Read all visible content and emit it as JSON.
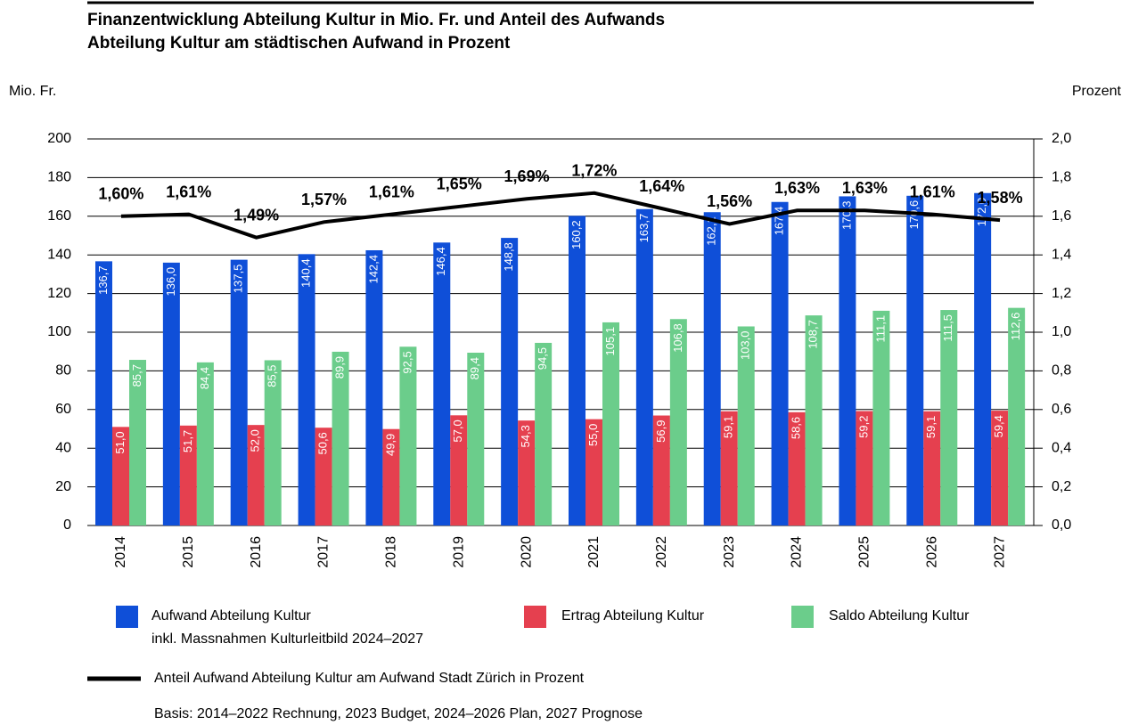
{
  "chart_data": {
    "type": "bar",
    "title_lines": [
      "Finanzentwicklung Abteilung Kultur in Mio. Fr. und Anteil des Aufwands",
      "Abteilung Kultur am städtischen Aufwand in Prozent"
    ],
    "y_label": "Mio. Fr.",
    "y2_label": "Prozent",
    "categories": [
      "2014",
      "2015",
      "2016",
      "2017",
      "2018",
      "2019",
      "2020",
      "2021",
      "2022",
      "2023",
      "2024",
      "2025",
      "2026",
      "2027"
    ],
    "ylim": [
      0,
      200
    ],
    "yticks": [
      0,
      20,
      40,
      60,
      80,
      100,
      120,
      140,
      160,
      180,
      200
    ],
    "y2lim": [
      0,
      2
    ],
    "y2ticks": [
      {
        "value": 0,
        "label": "0,0"
      },
      {
        "value": 0.2,
        "label": "0,2"
      },
      {
        "value": 0.4,
        "label": "0,4"
      },
      {
        "value": 0.6,
        "label": "0,6"
      },
      {
        "value": 0.8,
        "label": "0,8"
      },
      {
        "value": 1,
        "label": "1,0"
      },
      {
        "value": 1.2,
        "label": "1,2"
      },
      {
        "value": 1.4,
        "label": "1,4"
      },
      {
        "value": 1.6,
        "label": "1,6"
      },
      {
        "value": 1.8,
        "label": "1,8"
      },
      {
        "value": 2,
        "label": "2,0"
      }
    ],
    "grid": true,
    "series": [
      {
        "name": "Aufwand Abteilung Kultur",
        "note": "inkl. Massnahmen Kulturleitbild 2024–2027",
        "type": "bar",
        "color": "#0f4fd8",
        "values": [
          136.7,
          136.0,
          137.5,
          140.4,
          142.4,
          146.4,
          148.8,
          160.2,
          163.7,
          162.1,
          167.4,
          170.3,
          170.6,
          172.0
        ],
        "value_labels": [
          "136,7",
          "136,0",
          "137,5",
          "140,4",
          "142,4",
          "146,4",
          "148,8",
          "160,2",
          "163,7",
          "162,1",
          "167,4",
          "170,3",
          "170,6",
          "172,0"
        ]
      },
      {
        "name": "Ertrag Abteilung Kultur",
        "type": "bar",
        "color": "#e5404f",
        "values": [
          51.0,
          51.7,
          52.0,
          50.6,
          49.9,
          57.0,
          54.3,
          55.0,
          56.9,
          59.1,
          58.6,
          59.2,
          59.1,
          59.4
        ],
        "value_labels": [
          "51,0",
          "51,7",
          "52,0",
          "50,6",
          "49,9",
          "57,0",
          "54,3",
          "55,0",
          "56,9",
          "59,1",
          "58,6",
          "59,2",
          "59,1",
          "59,4"
        ]
      },
      {
        "name": "Saldo Abteilung Kultur",
        "type": "bar",
        "color": "#6bcd8b",
        "values": [
          85.7,
          84.4,
          85.5,
          89.9,
          92.5,
          89.4,
          94.5,
          105.1,
          106.8,
          103.0,
          108.7,
          111.1,
          111.5,
          112.6
        ],
        "value_labels": [
          "85,7",
          "84,4",
          "85,5",
          "89,9",
          "92,5",
          "89,4",
          "94,5",
          "105,1",
          "106,8",
          "103,0",
          "108,7",
          "111,1",
          "111,5",
          "112,6"
        ]
      },
      {
        "name": "Anteil Aufwand Abteilung Kultur am Aufwand Stadt Zürich in Prozent",
        "type": "line",
        "axis": "y2",
        "color": "#000000",
        "values": [
          1.6,
          1.61,
          1.49,
          1.57,
          1.61,
          1.65,
          1.69,
          1.72,
          1.64,
          1.56,
          1.63,
          1.63,
          1.61,
          1.58
        ],
        "value_labels": [
          "1,60%",
          "1,61%",
          "1,49%",
          "1,57%",
          "1,61%",
          "1,65%",
          "1,69%",
          "1,72%",
          "1,64%",
          "1,56%",
          "1,63%",
          "1,63%",
          "1,61%",
          "1,58%"
        ]
      }
    ],
    "source": "Basis: 2014–2022 Rechnung, 2023 Budget, 2024–2026 Plan, 2027 Prognose"
  }
}
